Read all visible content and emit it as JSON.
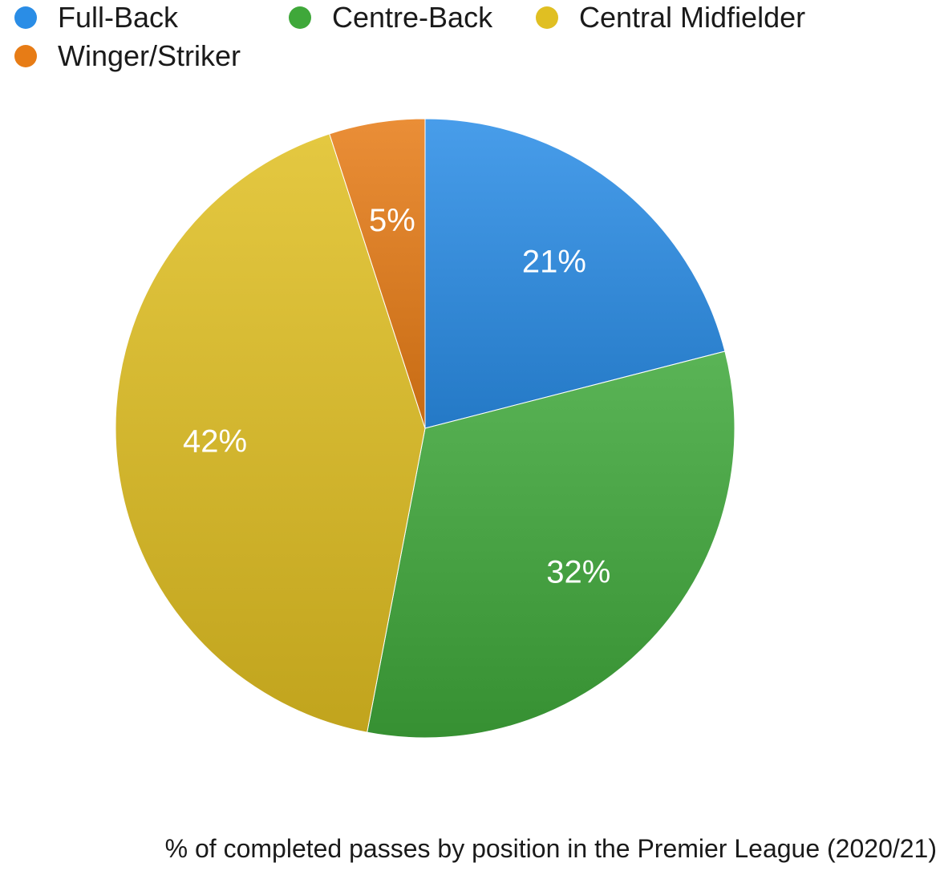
{
  "chart_data": {
    "type": "pie",
    "title": "% of completed passes by position in the Premier League (2020/21)",
    "slices": [
      {
        "label": "Full-Back",
        "value": 21,
        "display": "21%",
        "color": "#2a8de6"
      },
      {
        "label": "Centre-Back",
        "value": 32,
        "display": "32%",
        "color": "#3fa83a"
      },
      {
        "label": "Central Midfielder",
        "value": 42,
        "display": "42%",
        "color": "#e0bf22"
      },
      {
        "label": "Winger/Striker",
        "value": 5,
        "display": "5%",
        "color": "#e77c16"
      }
    ],
    "legend_position": "top-left",
    "start_angle": "12 o'clock",
    "direction": "clockwise"
  }
}
